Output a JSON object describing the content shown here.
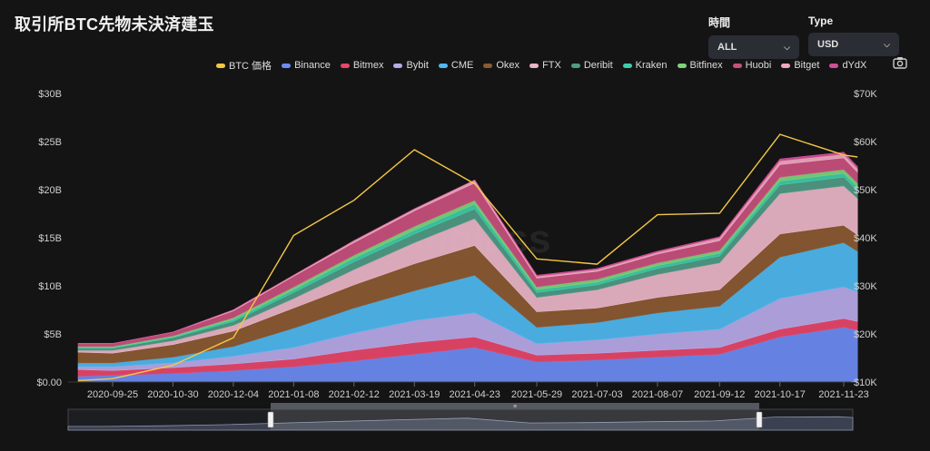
{
  "title": "取引所BTC先物未決済建玉",
  "controls": {
    "time": {
      "label": "時間",
      "value": "ALL"
    },
    "type": {
      "label": "Type",
      "value": "USD"
    }
  },
  "watermark": "coinglass",
  "icons": {
    "camera": "camera-icon",
    "chevron": "chevron-down-icon"
  },
  "chart_data": {
    "type": "area",
    "stacked": true,
    "x": [
      "2020-09-05",
      "2020-09-25",
      "2020-10-30",
      "2020-12-04",
      "2021-01-08",
      "2021-02-12",
      "2021-03-19",
      "2021-04-23",
      "2021-05-29",
      "2021-07-03",
      "2021-08-07",
      "2021-09-12",
      "2021-10-17",
      "2021-11-23",
      "2021-12-01"
    ],
    "x_tick_labels": [
      "2020-09-25",
      "2020-10-30",
      "2020-12-04",
      "2021-01-08",
      "2021-02-12",
      "2021-03-19",
      "2021-04-23",
      "2021-05-29",
      "2021-07-03",
      "2021-08-07",
      "2021-09-12",
      "2021-10-17",
      "2021-11-23"
    ],
    "y_left": {
      "ticks": [
        "$0.00",
        "$5B",
        "$10B",
        "$15B",
        "$20B",
        "$25B",
        "$30B"
      ],
      "range": [
        0,
        30
      ],
      "unit": "B USD"
    },
    "y_right": {
      "ticks": [
        "$10K",
        "$20K",
        "$30K",
        "$40K",
        "$50K",
        "$60K",
        "$70K"
      ],
      "range": [
        10,
        70
      ],
      "unit": "K USD"
    },
    "grid": false,
    "legend_position": "top-right",
    "series": [
      {
        "name": "Binance",
        "color": "#6c8cf5",
        "values": [
          0.6,
          0.7,
          0.9,
          1.2,
          1.6,
          2.2,
          2.9,
          3.6,
          2.1,
          2.3,
          2.6,
          2.9,
          4.7,
          5.7,
          5.4
        ]
      },
      {
        "name": "Bitmex",
        "color": "#e8466a",
        "values": [
          0.7,
          0.5,
          0.6,
          0.7,
          0.8,
          1.1,
          1.2,
          1.1,
          0.7,
          0.7,
          0.7,
          0.7,
          0.8,
          0.9,
          0.9
        ]
      },
      {
        "name": "Bybit",
        "color": "#b9a9e8",
        "values": [
          0.3,
          0.4,
          0.5,
          0.8,
          1.2,
          1.8,
          2.3,
          2.5,
          1.2,
          1.4,
          1.7,
          1.9,
          3.2,
          3.3,
          3.1
        ]
      },
      {
        "name": "CME",
        "color": "#4fb8f0",
        "values": [
          0.4,
          0.4,
          0.6,
          1.0,
          2.0,
          2.6,
          3.1,
          3.9,
          1.7,
          1.8,
          2.2,
          2.4,
          4.3,
          4.6,
          4.2
        ]
      },
      {
        "name": "Okex",
        "color": "#8c5a32",
        "values": [
          1.1,
          1.0,
          1.3,
          1.6,
          2.1,
          2.4,
          2.8,
          3.1,
          1.6,
          1.5,
          1.6,
          1.7,
          2.4,
          1.8,
          1.7
        ]
      },
      {
        "name": "FTX",
        "color": "#eab5c8",
        "values": [
          0.2,
          0.3,
          0.4,
          0.6,
          1.0,
          1.6,
          2.2,
          2.8,
          1.5,
          1.9,
          2.4,
          2.8,
          4.2,
          4.1,
          3.8
        ]
      },
      {
        "name": "Deribit",
        "color": "#4f9b86",
        "values": [
          0.2,
          0.2,
          0.3,
          0.4,
          0.6,
          0.8,
          0.9,
          1.0,
          0.5,
          0.5,
          0.6,
          0.7,
          0.9,
          0.9,
          0.8
        ]
      },
      {
        "name": "Kraken",
        "color": "#3fcca8",
        "values": [
          0.1,
          0.1,
          0.1,
          0.2,
          0.3,
          0.4,
          0.4,
          0.5,
          0.3,
          0.3,
          0.3,
          0.3,
          0.4,
          0.4,
          0.4
        ]
      },
      {
        "name": "Bitfinex",
        "color": "#7ed27c",
        "values": [
          0.1,
          0.1,
          0.1,
          0.2,
          0.3,
          0.3,
          0.4,
          0.4,
          0.3,
          0.3,
          0.3,
          0.3,
          0.4,
          0.4,
          0.4
        ]
      },
      {
        "name": "Huobi",
        "color": "#c8507e",
        "values": [
          0.3,
          0.3,
          0.4,
          0.7,
          1.1,
          1.3,
          1.6,
          1.8,
          0.9,
          0.8,
          0.9,
          1.0,
          1.3,
          1.2,
          1.1
        ]
      },
      {
        "name": "Bitget",
        "color": "#f0a8c0",
        "values": [
          0.0,
          0.0,
          0.0,
          0.1,
          0.1,
          0.2,
          0.2,
          0.3,
          0.2,
          0.2,
          0.2,
          0.3,
          0.4,
          0.4,
          0.4
        ]
      },
      {
        "name": "dYdX",
        "color": "#d05096",
        "values": [
          0.0,
          0.0,
          0.0,
          0.0,
          0.0,
          0.0,
          0.0,
          0.0,
          0.1,
          0.1,
          0.1,
          0.1,
          0.2,
          0.2,
          0.2
        ]
      }
    ],
    "price_series": {
      "name": "BTC 価格",
      "color": "#f4c745",
      "axis": "right",
      "values": [
        10.3,
        10.7,
        13.5,
        19.2,
        40.5,
        47.8,
        58.3,
        51.2,
        35.6,
        34.5,
        44.8,
        45.1,
        61.5,
        57.2,
        56.8
      ]
    }
  },
  "navigator": {
    "handle_glyph": "≡"
  }
}
